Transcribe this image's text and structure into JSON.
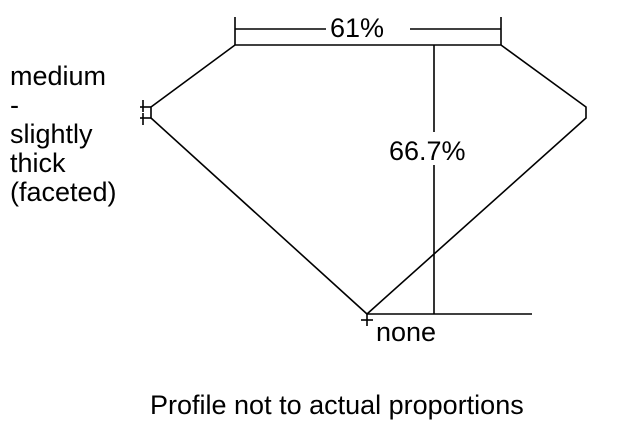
{
  "girdle_label": [
    "medium",
    "-",
    "slightly",
    "thick",
    "(faceted)"
  ],
  "table_percent": "61%",
  "depth_percent": "66.7%",
  "culet_label": "none",
  "footnote": "Profile not to actual proportions"
}
